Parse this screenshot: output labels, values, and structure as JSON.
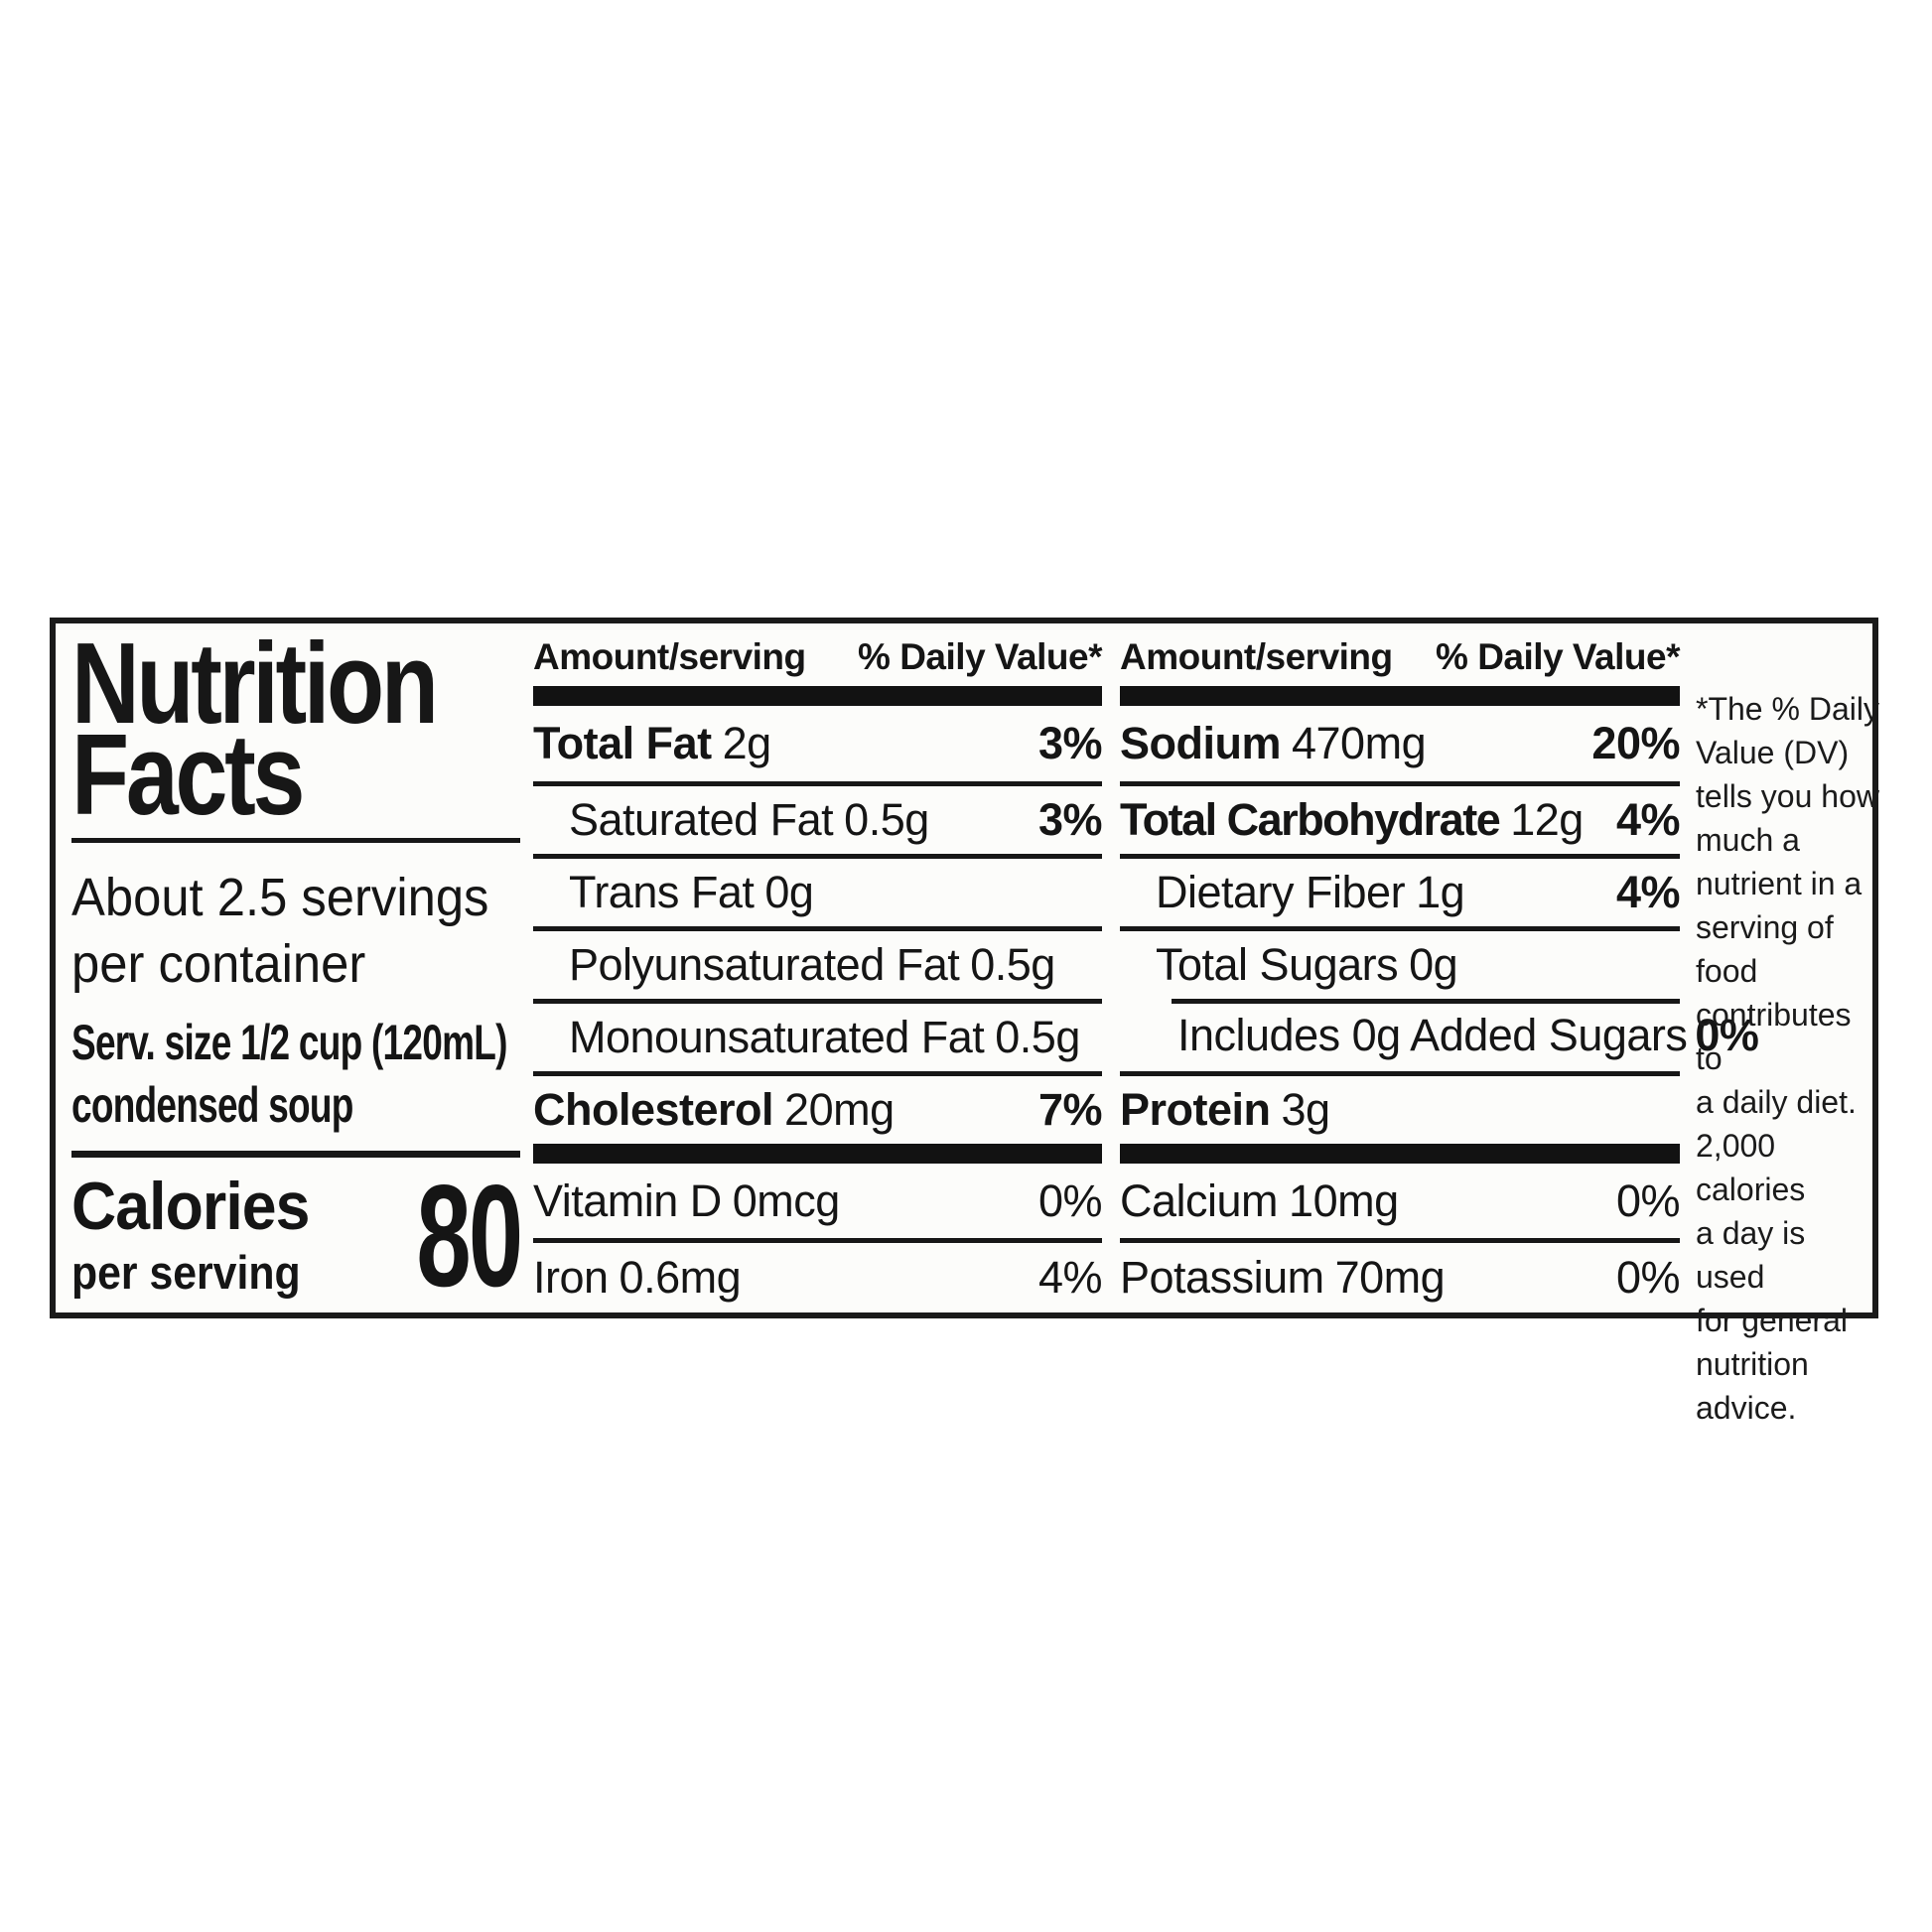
{
  "label": {
    "title_line1": "Nutrition",
    "title_line2": "Facts",
    "servings_line1": "About 2.5 servings",
    "servings_line2": "per container",
    "serving_size_line1": "Serv. size 1/2 cup (120mL)",
    "serving_size_line2": "condensed soup",
    "calories_word": "Calories",
    "calories_sub": "per serving",
    "calories_value": "80",
    "ink_color": "#171717",
    "background_color": "#fcfcfa",
    "columns": [
      {
        "header_amount": "Amount/serving",
        "header_dv": "% Daily Value*",
        "rows": [
          {
            "name": "Total Fat",
            "amount": "2g",
            "dv": "3%"
          },
          {
            "name": "Saturated Fat",
            "amount": "0.5g",
            "dv": "3%"
          },
          {
            "name": "Trans Fat",
            "amount": "0g",
            "dv": ""
          },
          {
            "name": "Polyunsaturated Fat",
            "amount": "0.5g",
            "dv": ""
          },
          {
            "name": "Monounsaturated Fat",
            "amount": "0.5g",
            "dv": ""
          },
          {
            "name": "Cholesterol",
            "amount": "20mg",
            "dv": "7%"
          }
        ],
        "micros": [
          {
            "name": "Vitamin D",
            "amount": "0mcg",
            "dv": "0%"
          },
          {
            "name": "Iron",
            "amount": "0.6mg",
            "dv": "4%"
          }
        ]
      },
      {
        "header_amount": "Amount/serving",
        "header_dv": "% Daily Value*",
        "rows": [
          {
            "name": "Sodium",
            "amount": "470mg",
            "dv": "20%"
          },
          {
            "name": "Total Carbohydrate",
            "amount": "12g",
            "dv": "4%"
          },
          {
            "name": "Dietary Fiber",
            "amount": "1g",
            "dv": "4%"
          },
          {
            "name": "Total Sugars",
            "amount": "0g",
            "dv": ""
          },
          {
            "name": "Includes 0g Added Sugars",
            "amount": "",
            "dv": "0%"
          },
          {
            "name": "Protein",
            "amount": "3g",
            "dv": ""
          }
        ],
        "micros": [
          {
            "name": "Calcium",
            "amount": "10mg",
            "dv": "0%"
          },
          {
            "name": "Potassium",
            "amount": "70mg",
            "dv": "0%"
          }
        ]
      }
    ],
    "footnote_lines": [
      "*The % Daily",
      "Value (DV)",
      "tells you how",
      "much a",
      "nutrient in a",
      "serving of food",
      "contributes to",
      "a daily diet.",
      "2,000 calories",
      "a day is used",
      "for general",
      "nutrition",
      "advice."
    ]
  }
}
